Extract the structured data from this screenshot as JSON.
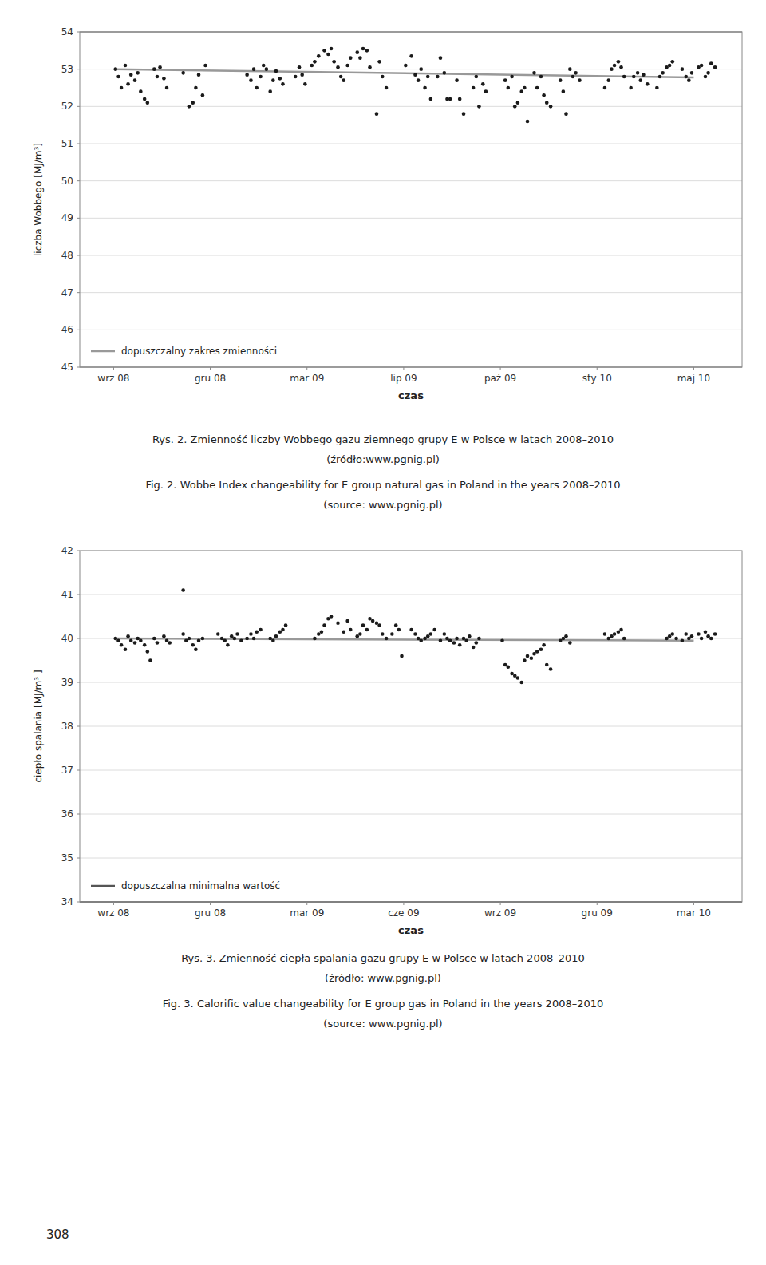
{
  "chart_data": [
    {
      "type": "scatter",
      "ylabel": "liczba Wobbego [MJ/m³]",
      "xlabel": "czas",
      "xlim": [
        -0.35,
        6.5
      ],
      "xticks": [
        {
          "value": 0,
          "label": "wrz 08"
        },
        {
          "value": 1,
          "label": "gru 08"
        },
        {
          "value": 2,
          "label": "mar 09"
        },
        {
          "value": 3,
          "label": "lip 09"
        },
        {
          "value": 4,
          "label": "paź 09"
        },
        {
          "value": 5,
          "label": "sty 10"
        },
        {
          "value": 6,
          "label": "maj 10"
        }
      ],
      "ylim": [
        45,
        54
      ],
      "yticks": [
        45,
        46,
        47,
        48,
        49,
        50,
        51,
        52,
        53,
        54
      ],
      "grid": true,
      "legend": "lower left",
      "series": [
        {
          "name": "dopuszczalny zakres zmienności",
          "type": "hline",
          "color": "#999999",
          "values": [
            54.0,
            45.0
          ]
        },
        {
          "type": "line",
          "color": "#999999",
          "x": [
            0,
            6
          ],
          "values": [
            53.0,
            52.78
          ]
        },
        {
          "type": "scatter",
          "color": "#1a1a1a",
          "marker": "circle",
          "x": [
            0.02,
            0.05,
            0.08,
            0.12,
            0.15,
            0.18,
            0.22,
            0.25,
            0.28,
            0.32,
            0.35,
            0.42,
            0.45,
            0.48,
            0.52,
            0.55,
            0.72,
            0.78,
            0.82,
            0.85,
            0.88,
            0.92,
            0.95,
            1.38,
            1.42,
            1.45,
            1.48,
            1.52,
            1.55,
            1.58,
            1.62,
            1.65,
            1.68,
            1.72,
            1.75,
            1.88,
            1.92,
            1.95,
            1.98,
            2.05,
            2.08,
            2.12,
            2.18,
            2.22,
            2.25,
            2.28,
            2.32,
            2.35,
            2.38,
            2.42,
            2.45,
            2.52,
            2.55,
            2.58,
            2.62,
            2.65,
            2.72,
            2.75,
            2.78,
            2.82,
            3.02,
            3.08,
            3.12,
            3.15,
            3.18,
            3.22,
            3.25,
            3.28,
            3.35,
            3.38,
            3.42,
            3.45,
            3.48,
            3.55,
            3.58,
            3.62,
            3.72,
            3.75,
            3.78,
            3.82,
            3.85,
            4.05,
            4.08,
            4.12,
            4.15,
            4.18,
            4.22,
            4.25,
            4.28,
            4.35,
            4.38,
            4.42,
            4.45,
            4.48,
            4.52,
            4.62,
            4.65,
            4.68,
            4.72,
            4.75,
            4.78,
            4.82,
            5.08,
            5.12,
            5.15,
            5.18,
            5.22,
            5.25,
            5.28,
            5.35,
            5.38,
            5.42,
            5.45,
            5.48,
            5.52,
            5.62,
            5.65,
            5.68,
            5.72,
            5.75,
            5.78,
            5.88,
            5.92,
            5.95,
            5.98,
            6.05,
            6.08,
            6.12,
            6.15,
            6.18,
            6.22
          ],
          "values": [
            53.0,
            52.8,
            52.5,
            53.1,
            52.6,
            52.85,
            52.7,
            52.9,
            52.4,
            52.2,
            52.1,
            53.0,
            52.8,
            53.05,
            52.75,
            52.5,
            52.9,
            52.0,
            52.1,
            52.5,
            52.85,
            52.3,
            53.1,
            52.85,
            52.7,
            53.0,
            52.5,
            52.8,
            53.1,
            53.0,
            52.4,
            52.7,
            52.95,
            52.75,
            52.6,
            52.8,
            53.05,
            52.85,
            52.6,
            53.1,
            53.2,
            53.35,
            53.5,
            53.4,
            53.55,
            53.2,
            53.05,
            52.8,
            52.7,
            53.1,
            53.3,
            53.45,
            53.3,
            53.55,
            53.5,
            53.05,
            51.8,
            53.2,
            52.8,
            52.5,
            53.1,
            53.35,
            52.85,
            52.7,
            53.0,
            52.5,
            52.8,
            52.2,
            52.8,
            53.3,
            52.9,
            52.2,
            52.2,
            52.7,
            52.2,
            51.8,
            52.5,
            52.8,
            52.0,
            52.6,
            52.4,
            52.7,
            52.5,
            52.8,
            52.0,
            52.1,
            52.4,
            52.5,
            51.6,
            52.9,
            52.5,
            52.8,
            52.3,
            52.1,
            52.0,
            52.7,
            52.4,
            51.8,
            53.0,
            52.8,
            52.9,
            52.7,
            52.5,
            52.7,
            53.0,
            53.1,
            53.2,
            53.05,
            52.8,
            52.5,
            52.8,
            52.9,
            52.7,
            52.85,
            52.6,
            52.5,
            52.8,
            52.9,
            53.05,
            53.1,
            53.2,
            53.0,
            52.8,
            52.7,
            52.9,
            53.05,
            53.1,
            52.8,
            52.9,
            53.15,
            53.05
          ]
        }
      ],
      "annotations": [
        "Rys. 2. Zmienność liczby Wobbego gazu ziemnego grupy E w Polsce w latach 2008–2010",
        "(źródło:www.pgnig.pl)",
        "Fig. 2. Wobbe Index changeability for E group natural gas in Poland in the years 2008–2010",
        "(source: www.pgnig.pl)"
      ]
    },
    {
      "type": "scatter",
      "ylabel": "ciepło spalania [MJ/m³ ]",
      "xlabel": "czas",
      "xlim": [
        -0.35,
        6.5
      ],
      "xticks": [
        {
          "value": 0,
          "label": "wrz 08"
        },
        {
          "value": 1,
          "label": "gru 08"
        },
        {
          "value": 2,
          "label": "mar 09"
        },
        {
          "value": 3,
          "label": "cze 09"
        },
        {
          "value": 4,
          "label": "wrz 09"
        },
        {
          "value": 5,
          "label": "gru 09"
        },
        {
          "value": 6,
          "label": "mar 10"
        }
      ],
      "ylim": [
        34,
        42
      ],
      "yticks": [
        34,
        35,
        36,
        37,
        38,
        39,
        40,
        41,
        42
      ],
      "grid": true,
      "legend": "lower left",
      "series": [
        {
          "name": "dopuszczalna minimalna wartość",
          "type": "hline",
          "color": "#555555",
          "values": [
            34.0
          ]
        },
        {
          "type": "line",
          "color": "#999999",
          "x": [
            0,
            6
          ],
          "values": [
            40.0,
            39.95
          ]
        },
        {
          "type": "scatter",
          "color": "#1a1a1a",
          "marker": "circle",
          "x": [
            0.02,
            0.05,
            0.08,
            0.12,
            0.15,
            0.18,
            0.22,
            0.25,
            0.28,
            0.32,
            0.35,
            0.38,
            0.42,
            0.45,
            0.52,
            0.55,
            0.58,
            0.72,
            0.75,
            0.78,
            0.82,
            0.85,
            0.88,
            0.92,
            1.08,
            1.12,
            1.15,
            1.18,
            1.22,
            1.25,
            1.28,
            1.32,
            1.38,
            1.42,
            1.45,
            1.48,
            1.52,
            1.62,
            1.65,
            1.68,
            1.72,
            1.75,
            1.78,
            2.08,
            2.12,
            2.15,
            2.18,
            2.22,
            2.25,
            2.32,
            2.38,
            2.42,
            2.45,
            2.52,
            2.55,
            2.58,
            2.62,
            2.65,
            2.68,
            2.72,
            2.75,
            2.78,
            2.82,
            2.88,
            2.92,
            2.95,
            2.98,
            3.08,
            3.12,
            3.15,
            3.18,
            3.22,
            3.25,
            3.28,
            3.32,
            3.38,
            3.42,
            3.45,
            3.48,
            3.52,
            3.55,
            3.58,
            3.62,
            3.65,
            3.68,
            3.72,
            3.75,
            3.78,
            4.02,
            4.05,
            4.08,
            4.12,
            4.15,
            4.18,
            4.22,
            4.25,
            4.28,
            4.32,
            4.35,
            4.38,
            4.42,
            4.45,
            4.48,
            4.52,
            4.62,
            4.65,
            4.68,
            4.72,
            5.08,
            5.12,
            5.15,
            5.18,
            5.22,
            5.25,
            5.28,
            5.72,
            5.75,
            5.78,
            5.82,
            5.88,
            5.92,
            5.95,
            5.98,
            6.05,
            6.08,
            6.12,
            6.15,
            6.18,
            6.22
          ],
          "values": [
            40.0,
            39.95,
            39.85,
            39.75,
            40.05,
            39.95,
            39.9,
            40.0,
            39.95,
            39.85,
            39.7,
            39.5,
            40.0,
            39.9,
            40.05,
            39.95,
            39.9,
            40.1,
            39.95,
            40.0,
            39.85,
            39.75,
            39.95,
            40.0,
            40.1,
            40.0,
            39.95,
            39.85,
            40.05,
            40.0,
            40.1,
            39.95,
            40.0,
            40.1,
            40.0,
            40.15,
            40.2,
            40.0,
            39.95,
            40.05,
            40.15,
            40.2,
            40.3,
            40.0,
            40.1,
            40.15,
            40.3,
            40.45,
            40.5,
            40.35,
            40.15,
            40.4,
            40.2,
            40.05,
            40.1,
            40.3,
            40.2,
            40.45,
            40.4,
            40.35,
            40.3,
            40.1,
            40.0,
            40.1,
            40.3,
            40.2,
            39.6,
            40.2,
            40.1,
            40.0,
            39.95,
            40.0,
            40.05,
            40.1,
            40.2,
            39.95,
            40.1,
            40.0,
            39.95,
            39.9,
            40.0,
            39.85,
            40.0,
            39.95,
            40.05,
            39.8,
            39.9,
            40.0,
            39.95,
            39.4,
            39.35,
            39.2,
            39.15,
            39.1,
            39.0,
            39.5,
            39.6,
            39.55,
            39.65,
            39.7,
            39.75,
            39.85,
            39.4,
            39.3,
            39.95,
            40.0,
            40.05,
            39.9,
            40.1,
            40.0,
            40.05,
            40.1,
            40.15,
            40.2,
            40.0,
            40.0,
            40.05,
            40.1,
            40.0,
            39.95,
            40.1,
            40.0,
            40.05,
            40.1,
            40.0,
            40.15,
            40.05,
            40.0,
            40.1
          ]
        },
        {
          "type": "scatter",
          "color": "#1a1a1a",
          "marker": "circle",
          "x": [
            0.72
          ],
          "values": [
            41.1
          ]
        }
      ],
      "annotations": [
        "Rys. 3. Zmienność ciepła spalania gazu grupy E w Polsce w latach 2008–2010",
        "(źródło: www.pgnig.pl)",
        "Fig. 3. Calorific value changeability for E group gas in Poland in the years 2008–2010",
        "(source: www.pgnig.pl)"
      ]
    }
  ],
  "page_number": "308"
}
